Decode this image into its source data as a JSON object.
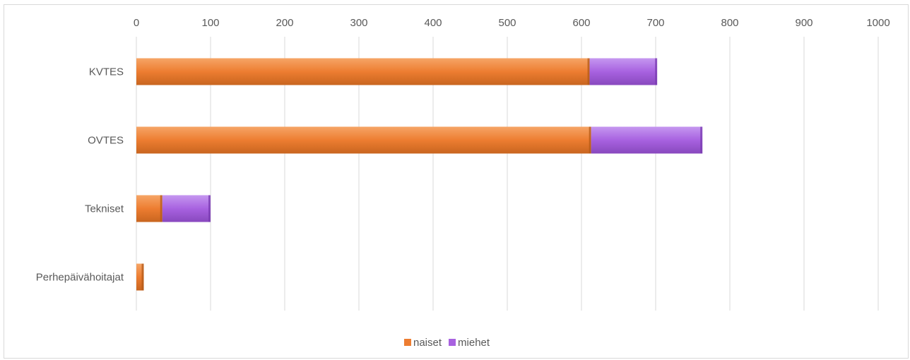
{
  "chart_data": {
    "type": "bar",
    "orientation": "horizontal",
    "stacked": true,
    "categories": [
      "KVTES",
      "OVTES",
      "Tekniset",
      "Perhepäivähoitajat"
    ],
    "series": [
      {
        "name": "naiset",
        "values": [
          611,
          613,
          35,
          10
        ],
        "color": "#ED7D31"
      },
      {
        "name": "miehet",
        "values": [
          91,
          150,
          65,
          0
        ],
        "color": "#A862E0"
      }
    ],
    "xlim": [
      0,
      1000
    ],
    "xticks": [
      "0",
      "100",
      "200",
      "300",
      "400",
      "500",
      "600",
      "700",
      "800",
      "900",
      "1000"
    ],
    "x_axis_position": "top",
    "grid": "vertical",
    "legend": "bottom"
  }
}
